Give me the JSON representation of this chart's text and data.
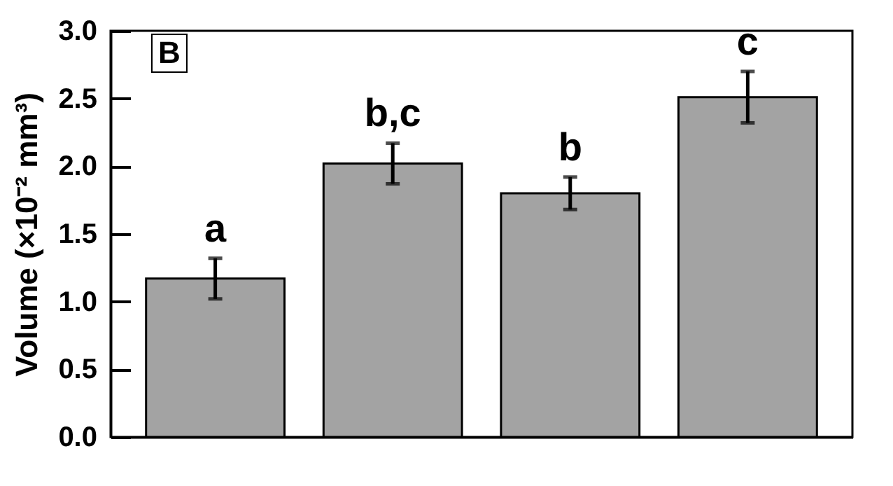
{
  "chart_data": {
    "type": "bar",
    "ylabel": "Volume (×10⁻² mm³)",
    "categories": [
      null,
      null,
      null,
      null
    ],
    "values": [
      1.17,
      2.02,
      1.8,
      2.51
    ],
    "errors": [
      0.15,
      0.15,
      0.12,
      0.19
    ],
    "color": "#a3a3a3",
    "ylim": [
      0,
      3
    ],
    "yticks": [
      {
        "value": 0,
        "label": "0.0"
      },
      {
        "value": 0.5,
        "label": "0.5"
      },
      {
        "value": 1,
        "label": "1.0"
      },
      {
        "value": 1.5,
        "label": "1.5"
      },
      {
        "value": 2,
        "label": "2.0"
      },
      {
        "value": 2.5,
        "label": "2.5"
      },
      {
        "value": 3,
        "label": "3.0"
      }
    ],
    "tick_labels": "y",
    "annotations": [
      "B",
      "a",
      "b,c",
      "b",
      "c"
    ]
  }
}
